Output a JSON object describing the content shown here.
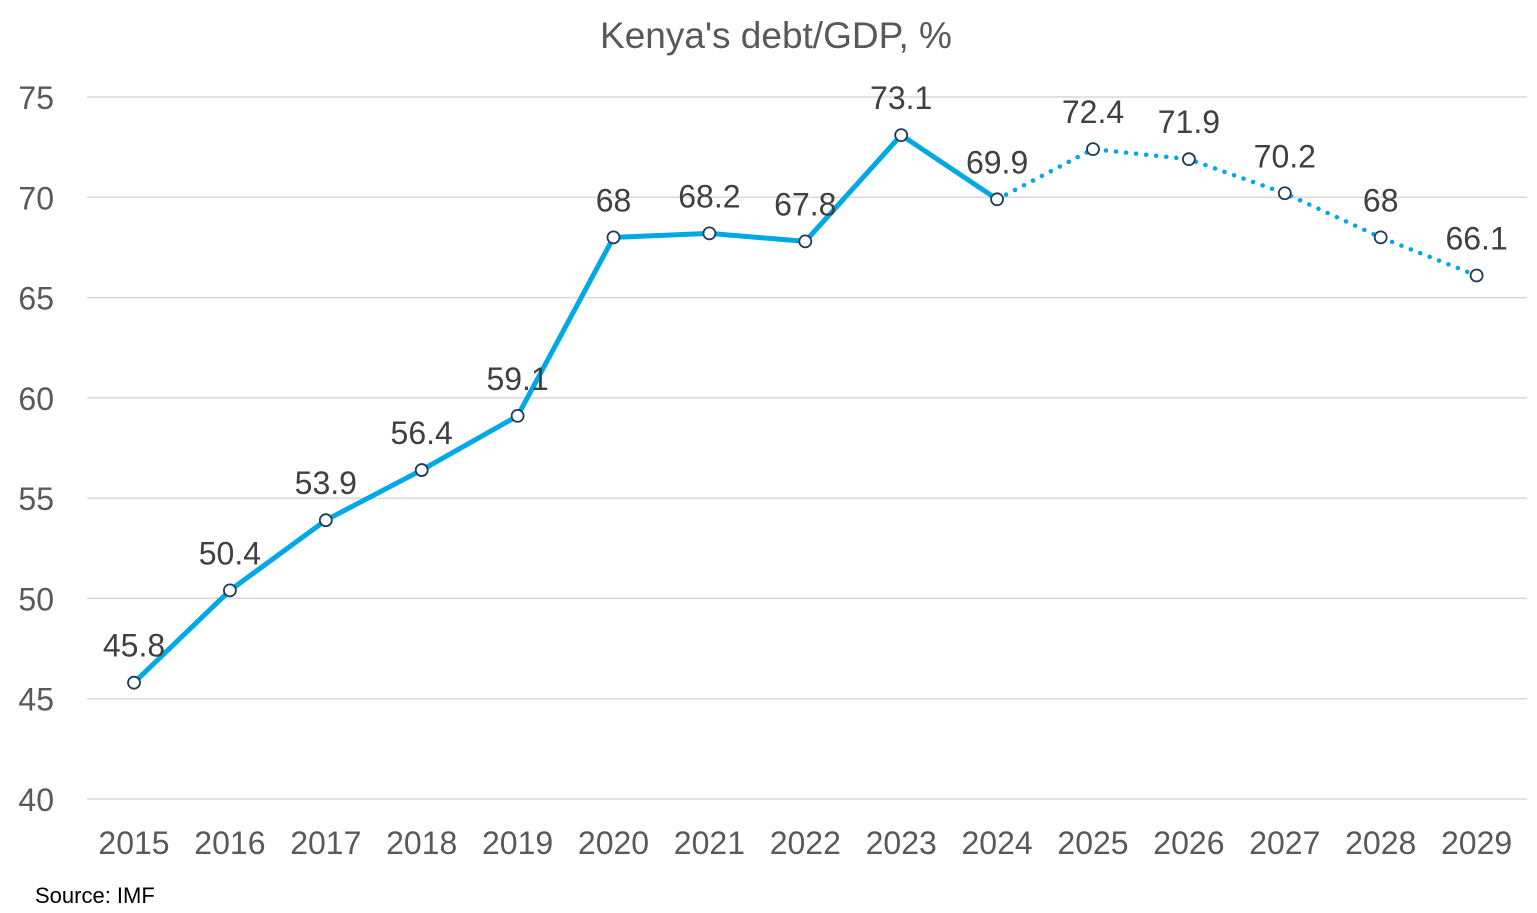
{
  "chart_data": {
    "type": "line",
    "title": "Kenya's debt/GDP, %",
    "source": "Source: IMF",
    "categories": [
      "2015",
      "2016",
      "2017",
      "2018",
      "2019",
      "2020",
      "2021",
      "2022",
      "2023",
      "2024",
      "2025",
      "2026",
      "2027",
      "2028",
      "2029"
    ],
    "values": [
      45.8,
      50.4,
      53.9,
      56.4,
      59.1,
      68,
      68.2,
      67.8,
      73.1,
      69.9,
      72.4,
      71.9,
      70.2,
      68,
      66.1
    ],
    "data_labels": [
      "45.8",
      "50.4",
      "53.9",
      "56.4",
      "59.1",
      "68",
      "68.2",
      "67.8",
      "73.1",
      "69.9",
      "72.4",
      "71.9",
      "70.2",
      "68",
      "66.1"
    ],
    "actual_through": "2024",
    "forecast_style": "dotted",
    "ylim": [
      40,
      75
    ],
    "yticks": [
      "40",
      "45",
      "50",
      "55",
      "60",
      "65",
      "70",
      "75"
    ],
    "grid": true,
    "legend": "none",
    "line_color": "#00A9E6",
    "marker_fill": "#ffffff",
    "marker_stroke": "#1f3b57"
  }
}
